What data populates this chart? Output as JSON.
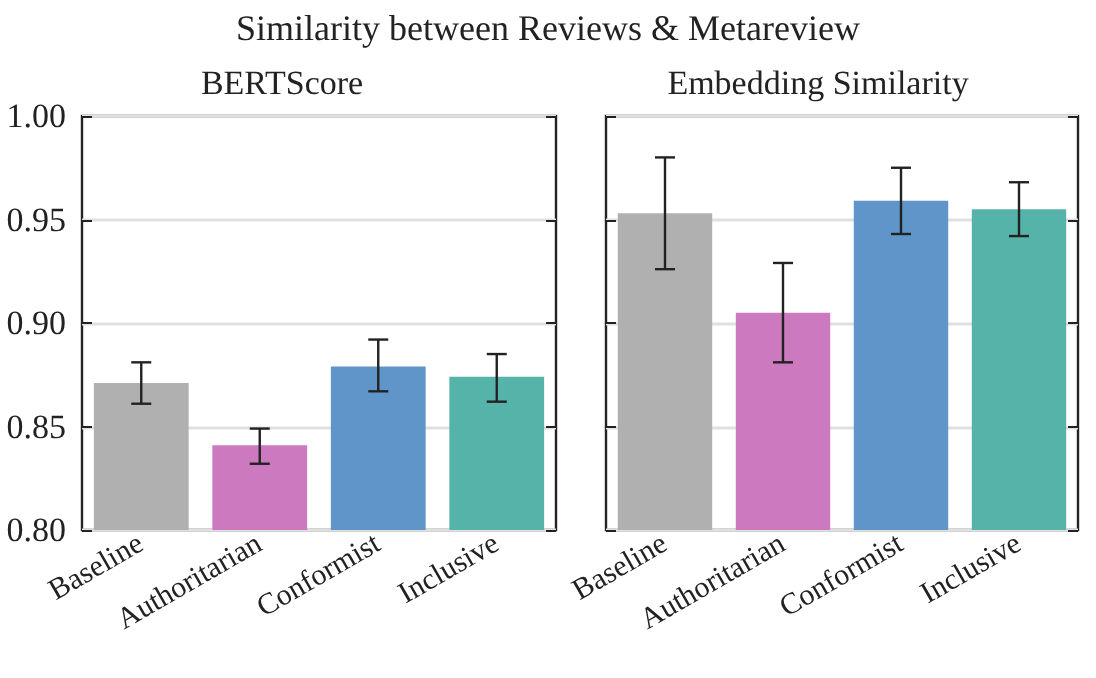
{
  "chart_data": [
    {
      "type": "bar",
      "title": "BERTScore",
      "annotations": [
        "Similarity between Reviews & Metareview"
      ],
      "categories": [
        "Baseline",
        "Authoritarian",
        "Conformist",
        "Inclusive"
      ],
      "values": [
        0.871,
        0.841,
        0.879,
        0.874
      ],
      "errors": [
        [
          0.861,
          0.881
        ],
        [
          0.832,
          0.849
        ],
        [
          0.867,
          0.892
        ],
        [
          0.862,
          0.885
        ]
      ],
      "colors": [
        "#b0b0b0",
        "#cc79c0",
        "#5f95c8",
        "#56b3a9"
      ],
      "ylim": [
        0.8,
        1.0
      ],
      "yticks": [
        {
          "value": 0.8,
          "label": "0.80"
        },
        {
          "value": 0.85,
          "label": "0.85"
        },
        {
          "value": 0.9,
          "label": "0.90"
        },
        {
          "value": 0.95,
          "label": "0.95"
        },
        {
          "value": 1.0,
          "label": "1.00"
        }
      ],
      "grid": "y"
    },
    {
      "type": "bar",
      "title": "Embedding Similarity",
      "categories": [
        "Baseline",
        "Authoritarian",
        "Conformist",
        "Inclusive"
      ],
      "values": [
        0.953,
        0.905,
        0.959,
        0.955
      ],
      "errors": [
        [
          0.926,
          0.98
        ],
        [
          0.881,
          0.929
        ],
        [
          0.943,
          0.975
        ],
        [
          0.942,
          0.968
        ]
      ],
      "colors": [
        "#b0b0b0",
        "#cc79c0",
        "#5f95c8",
        "#56b3a9"
      ],
      "ylim": [
        0.8,
        1.0
      ],
      "yticks": [
        0.8,
        0.85,
        0.9,
        0.95,
        1.0
      ],
      "grid": "y",
      "tick_labels": "x"
    }
  ]
}
